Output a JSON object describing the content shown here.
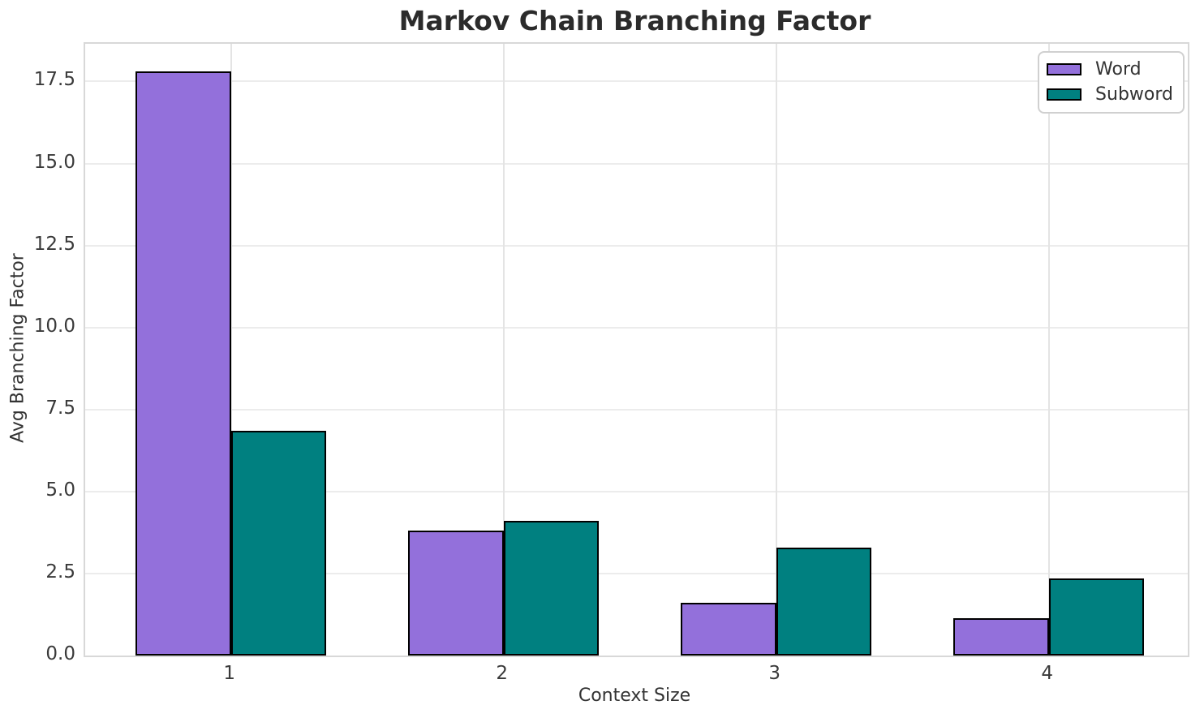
{
  "chart_data": {
    "type": "bar",
    "title": "Markov Chain Branching Factor",
    "xlabel": "Context Size",
    "ylabel": "Avg Branching Factor",
    "categories": [
      "1",
      "2",
      "3",
      "4"
    ],
    "series": [
      {
        "name": "Word",
        "color": "#9370DB",
        "values": [
          17.8,
          3.8,
          1.6,
          1.15
        ]
      },
      {
        "name": "Subword",
        "color": "#008080",
        "values": [
          6.85,
          4.1,
          3.3,
          2.35
        ]
      }
    ],
    "yticks": [
      0.0,
      2.5,
      5.0,
      7.5,
      10.0,
      12.5,
      15.0,
      17.5
    ],
    "ylim": [
      0,
      18.65
    ],
    "xlim": [
      0.465,
      4.51
    ],
    "bar_width": 0.35,
    "grid": true,
    "legend": {
      "position": "upper right",
      "entries": [
        "Word",
        "Subword"
      ]
    },
    "colors": {
      "bar_edge": "#000000",
      "grid": "#ececec",
      "spine": "#d8d8d8",
      "title_text": "#2b2b2b",
      "tick_text": "#3a3a3a"
    }
  }
}
